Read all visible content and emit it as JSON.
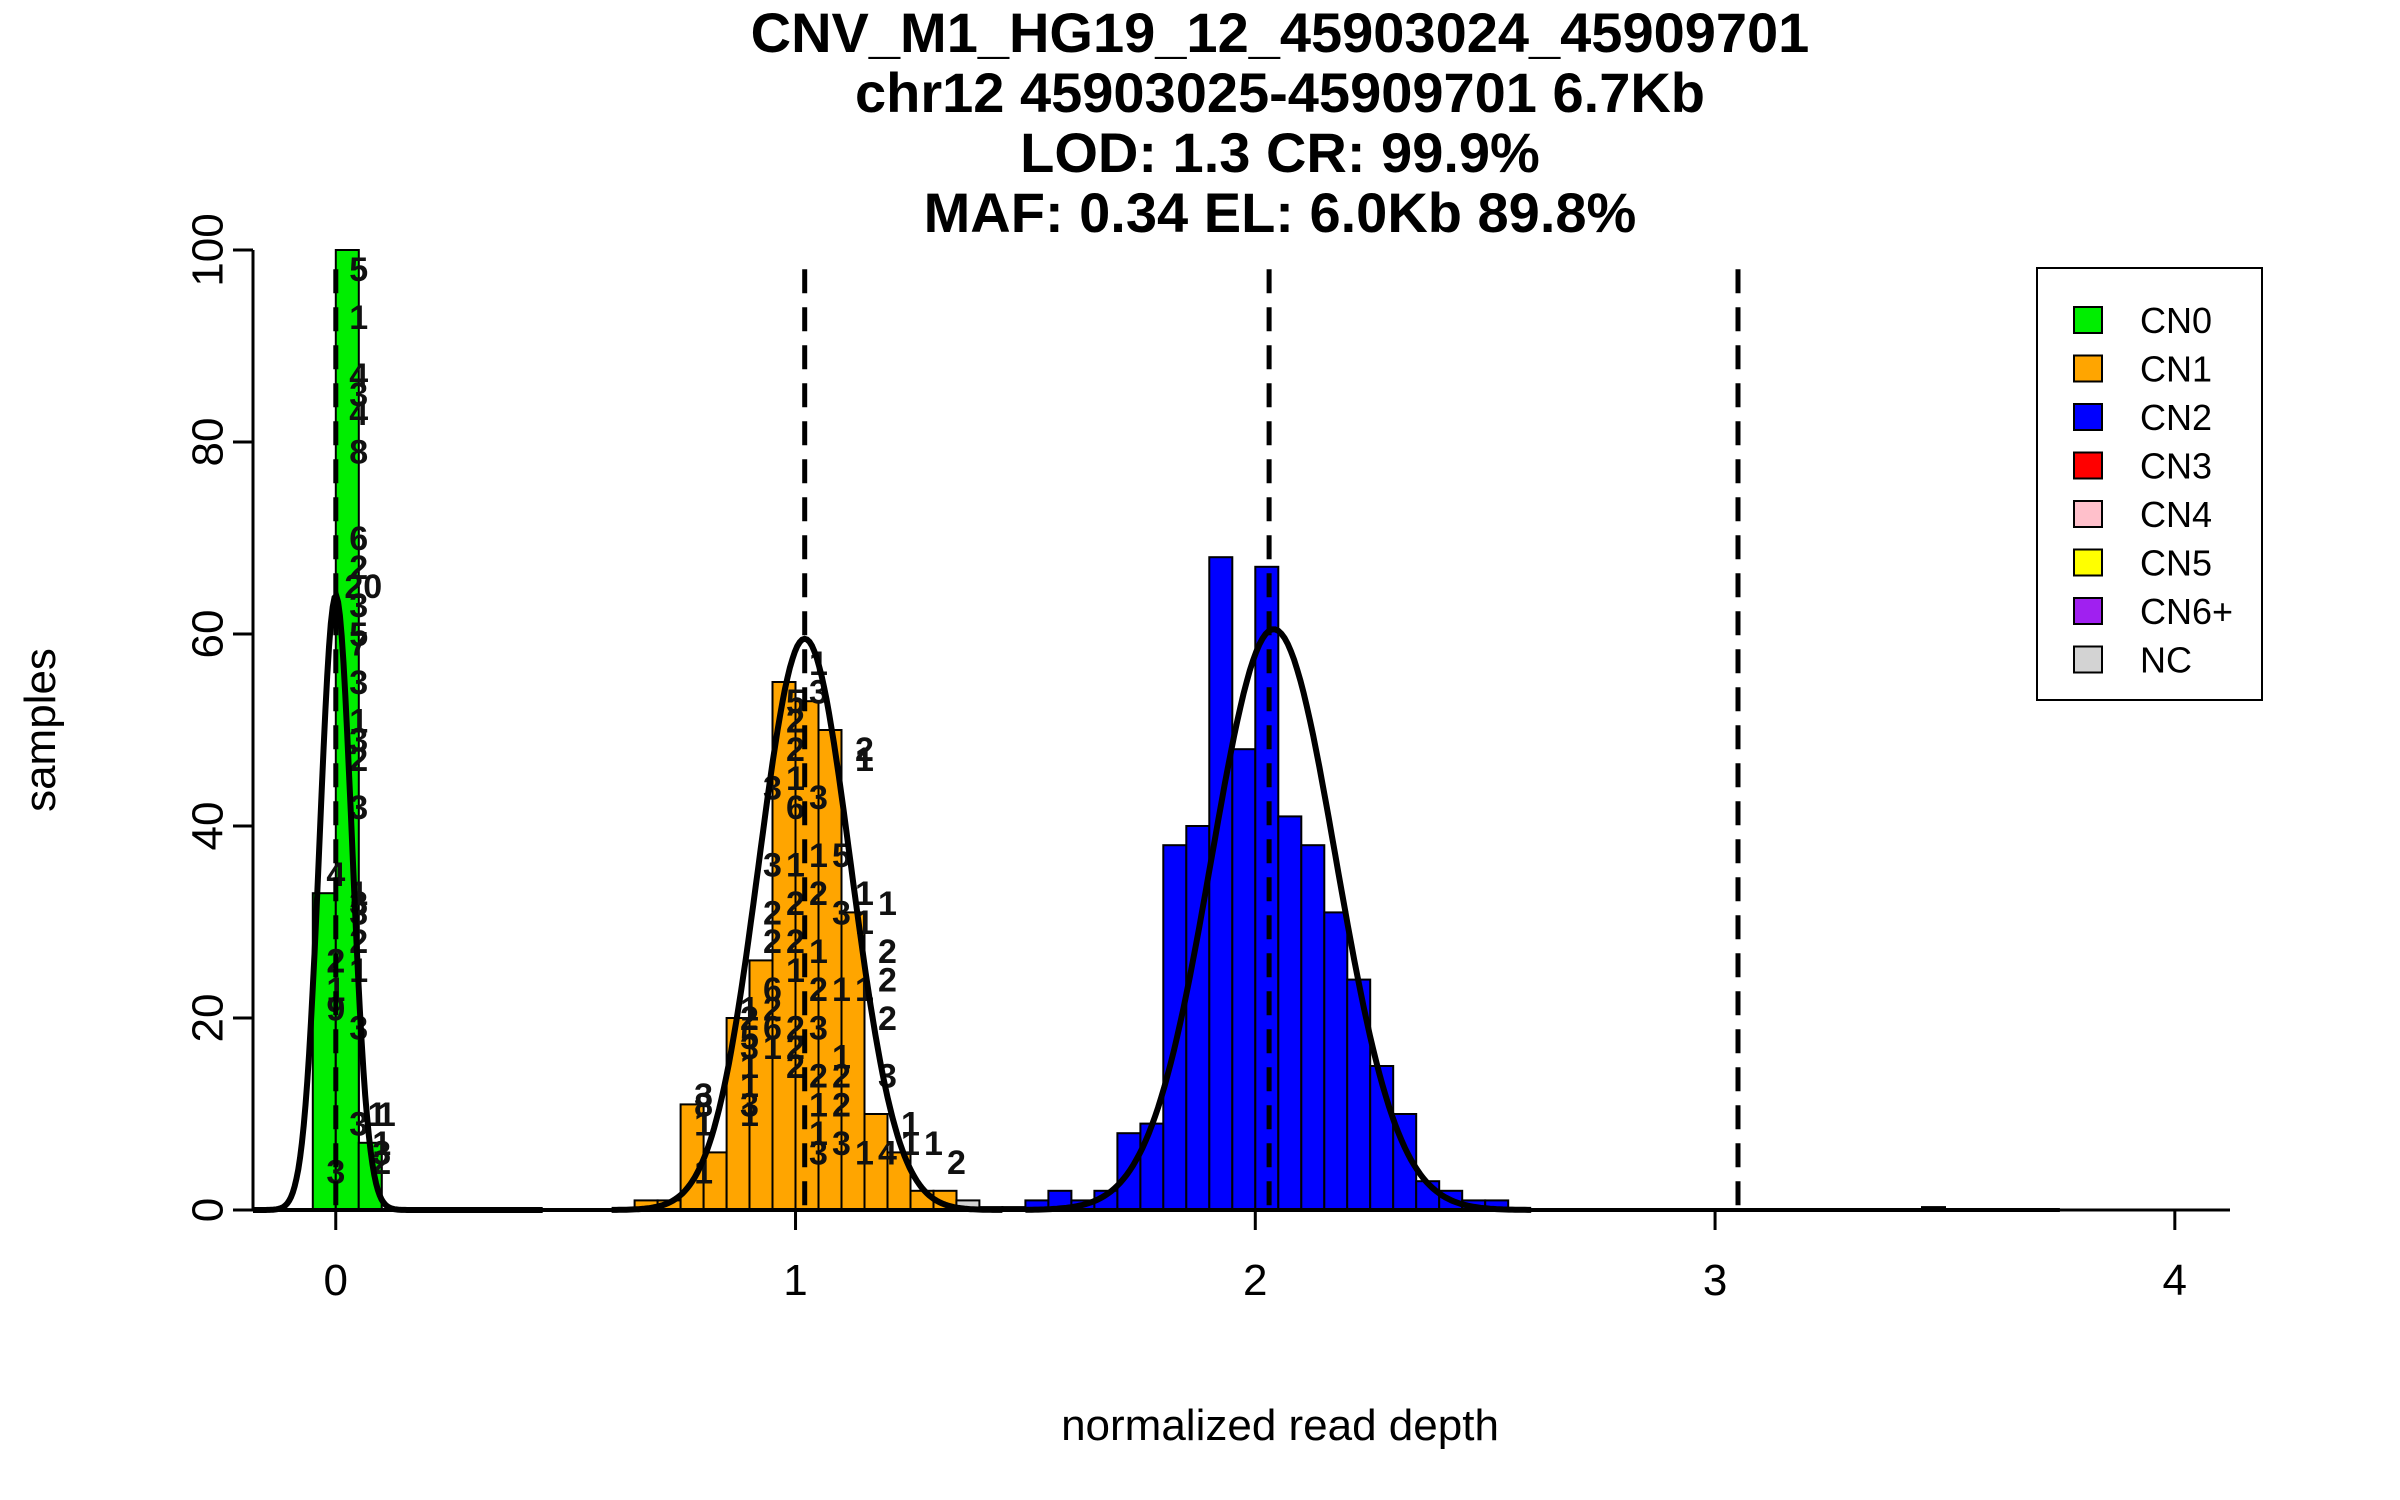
{
  "chart_data": {
    "type": "bar",
    "title_lines": [
      "CNV_M1_HG19_12_45903024_45909701",
      "chr12 45903025-45909701 6.7Kb",
      "LOD: 1.3 CR: 99.9%",
      "MAF: 0.34 EL: 6.0Kb 89.8%"
    ],
    "xlabel": "normalized read depth",
    "ylabel": "samples",
    "xlim": [
      -0.18,
      4.12
    ],
    "ylim": [
      0,
      100
    ],
    "x_ticks": [
      0,
      1,
      2,
      3,
      4
    ],
    "y_ticks": [
      0,
      20,
      40,
      60,
      80,
      100
    ],
    "vlines": [
      0.0,
      1.02,
      2.03,
      3.05
    ],
    "legend_position": "top-right",
    "legend": [
      {
        "label": "CN0",
        "color": "#00ee00"
      },
      {
        "label": "CN1",
        "color": "#ffa500"
      },
      {
        "label": "CN2",
        "color": "#0000ff"
      },
      {
        "label": "CN3",
        "color": "#ff0000"
      },
      {
        "label": "CN4",
        "color": "#ffc0cb"
      },
      {
        "label": "CN5",
        "color": "#ffff00"
      },
      {
        "label": "CN6+",
        "color": "#a020f0"
      },
      {
        "label": "NC",
        "color": "#d3d3d3"
      }
    ],
    "bin_width": 0.05,
    "series": [
      {
        "color": "#00ee00",
        "bins": [
          [
            -0.025,
            33
          ],
          [
            0.025,
            24
          ],
          [
            0.075,
            6
          ]
        ]
      },
      {
        "color": "#00ee00",
        "bins": [
          [
            0.025,
            100
          ],
          [
            0.075,
            7
          ]
        ]
      },
      {
        "color": "#ffa500",
        "bins": [
          [
            0.675,
            1
          ],
          [
            0.725,
            1
          ],
          [
            0.775,
            11
          ],
          [
            0.825,
            6
          ],
          [
            0.875,
            20
          ],
          [
            0.925,
            26
          ],
          [
            0.975,
            55
          ],
          [
            1.025,
            53
          ],
          [
            1.075,
            50
          ],
          [
            1.125,
            31
          ],
          [
            1.175,
            10
          ],
          [
            1.225,
            6
          ],
          [
            1.275,
            2
          ],
          [
            1.325,
            2
          ]
        ]
      },
      {
        "color": "#d3d3d3",
        "bins": [
          [
            1.375,
            1
          ],
          [
            1.425,
            0.3
          ],
          [
            3.475,
            0.3
          ]
        ]
      },
      {
        "color": "#0000ff",
        "bins": [
          [
            1.475,
            0.3
          ],
          [
            1.525,
            1
          ],
          [
            1.575,
            2
          ],
          [
            1.625,
            1
          ],
          [
            1.675,
            2
          ],
          [
            1.725,
            8
          ],
          [
            1.775,
            9
          ],
          [
            1.825,
            38
          ],
          [
            1.875,
            40
          ],
          [
            1.925,
            68
          ],
          [
            1.975,
            48
          ],
          [
            2.025,
            67
          ],
          [
            2.075,
            41
          ],
          [
            2.125,
            38
          ],
          [
            2.175,
            31
          ],
          [
            2.225,
            24
          ],
          [
            2.275,
            15
          ],
          [
            2.325,
            10
          ],
          [
            2.375,
            3
          ],
          [
            2.425,
            2
          ],
          [
            2.475,
            1
          ],
          [
            2.525,
            1
          ]
        ]
      }
    ],
    "density_curves": [
      {
        "mean": 0.0,
        "sd": 0.035,
        "peak": 64,
        "from": -0.18,
        "to": 0.45
      },
      {
        "mean": 1.02,
        "sd": 0.1,
        "peak": 59.5,
        "from": 0.6,
        "to": 1.45
      },
      {
        "mean": 2.04,
        "sd": 0.135,
        "peak": 60.5,
        "from": 1.5,
        "to": 2.6
      }
    ],
    "bar_labels": [
      {
        "x": 0.05,
        "y": 98,
        "text": "5"
      },
      {
        "x": 0.05,
        "y": 93,
        "text": "1"
      },
      {
        "x": 0.05,
        "y": 87,
        "text": "4"
      },
      {
        "x": 0.05,
        "y": 85,
        "text": "3"
      },
      {
        "x": 0.05,
        "y": 83,
        "text": "4"
      },
      {
        "x": 0.05,
        "y": 79,
        "text": "8"
      },
      {
        "x": 0.05,
        "y": 70,
        "text": "6"
      },
      {
        "x": 0.05,
        "y": 67,
        "text": "2"
      },
      {
        "x": 0.06,
        "y": 65,
        "text": "20"
      },
      {
        "x": 0.05,
        "y": 63,
        "text": "3"
      },
      {
        "x": 0.05,
        "y": 60,
        "text": "5"
      },
      {
        "x": 0.05,
        "y": 59,
        "text": "7"
      },
      {
        "x": 0.05,
        "y": 55,
        "text": "3"
      },
      {
        "x": 0.05,
        "y": 51,
        "text": "1"
      },
      {
        "x": 0.05,
        "y": 49,
        "text": "3"
      },
      {
        "x": 0.05,
        "y": 47,
        "text": "2"
      },
      {
        "x": 0.05,
        "y": 42,
        "text": "3"
      },
      {
        "x": 0.0,
        "y": 35,
        "text": "4"
      },
      {
        "x": 0.05,
        "y": 33,
        "text": "1"
      },
      {
        "x": 0.05,
        "y": 32,
        "text": "3"
      },
      {
        "x": 0.05,
        "y": 31,
        "text": "3"
      },
      {
        "x": 0.05,
        "y": 28,
        "text": "2"
      },
      {
        "x": 0.0,
        "y": 26,
        "text": "2"
      },
      {
        "x": 0.05,
        "y": 25,
        "text": "1"
      },
      {
        "x": 0.0,
        "y": 23,
        "text": "1"
      },
      {
        "x": 0.0,
        "y": 21,
        "text": "9"
      },
      {
        "x": 0.05,
        "y": 19,
        "text": "3"
      },
      {
        "x": 0.09,
        "y": 10,
        "text": "1"
      },
      {
        "x": 0.05,
        "y": 9,
        "text": "3"
      },
      {
        "x": 0.11,
        "y": 10,
        "text": "1"
      },
      {
        "x": 0.1,
        "y": 7,
        "text": "1"
      },
      {
        "x": 0.1,
        "y": 6,
        "text": "3"
      },
      {
        "x": 0.1,
        "y": 5,
        "text": "2"
      },
      {
        "x": 0.0,
        "y": 4,
        "text": "3"
      },
      {
        "x": 0.8,
        "y": 12,
        "text": "3"
      },
      {
        "x": 0.8,
        "y": 11,
        "text": "8"
      },
      {
        "x": 0.8,
        "y": 9,
        "text": "1"
      },
      {
        "x": 0.8,
        "y": 4,
        "text": "1"
      },
      {
        "x": 0.9,
        "y": 21,
        "text": "1"
      },
      {
        "x": 0.9,
        "y": 20,
        "text": "2"
      },
      {
        "x": 0.9,
        "y": 18,
        "text": "5"
      },
      {
        "x": 0.9,
        "y": 17,
        "text": "3"
      },
      {
        "x": 0.9,
        "y": 15,
        "text": "1"
      },
      {
        "x": 0.9,
        "y": 13,
        "text": "1"
      },
      {
        "x": 0.9,
        "y": 11,
        "text": "3"
      },
      {
        "x": 0.9,
        "y": 10,
        "text": "1"
      },
      {
        "x": 0.95,
        "y": 44,
        "text": "3"
      },
      {
        "x": 0.95,
        "y": 36,
        "text": "3"
      },
      {
        "x": 0.95,
        "y": 31,
        "text": "2"
      },
      {
        "x": 0.95,
        "y": 28,
        "text": "2"
      },
      {
        "x": 0.95,
        "y": 23,
        "text": "6"
      },
      {
        "x": 0.95,
        "y": 21,
        "text": "2"
      },
      {
        "x": 0.95,
        "y": 19,
        "text": "6"
      },
      {
        "x": 0.95,
        "y": 17,
        "text": "1"
      },
      {
        "x": 1.0,
        "y": 53,
        "text": "5"
      },
      {
        "x": 1.0,
        "y": 51,
        "text": "2"
      },
      {
        "x": 1.0,
        "y": 48,
        "text": "2"
      },
      {
        "x": 1.0,
        "y": 45,
        "text": "1"
      },
      {
        "x": 1.0,
        "y": 42,
        "text": "6"
      },
      {
        "x": 1.0,
        "y": 36,
        "text": "1"
      },
      {
        "x": 1.0,
        "y": 32,
        "text": "2"
      },
      {
        "x": 1.0,
        "y": 28,
        "text": "2"
      },
      {
        "x": 1.0,
        "y": 25,
        "text": "1"
      },
      {
        "x": 1.0,
        "y": 19,
        "text": "2"
      },
      {
        "x": 1.0,
        "y": 17,
        "text": "2"
      },
      {
        "x": 1.0,
        "y": 15,
        "text": "2"
      },
      {
        "x": 1.05,
        "y": 57,
        "text": "1"
      },
      {
        "x": 1.05,
        "y": 54,
        "text": "3"
      },
      {
        "x": 1.05,
        "y": 43,
        "text": "3"
      },
      {
        "x": 1.05,
        "y": 37,
        "text": "1"
      },
      {
        "x": 1.05,
        "y": 33,
        "text": "2"
      },
      {
        "x": 1.05,
        "y": 27,
        "text": "1"
      },
      {
        "x": 1.05,
        "y": 23,
        "text": "2"
      },
      {
        "x": 1.05,
        "y": 19,
        "text": "3"
      },
      {
        "x": 1.05,
        "y": 14,
        "text": "2"
      },
      {
        "x": 1.05,
        "y": 11,
        "text": "1"
      },
      {
        "x": 1.05,
        "y": 8,
        "text": "1"
      },
      {
        "x": 1.05,
        "y": 6,
        "text": "3"
      },
      {
        "x": 1.1,
        "y": 37,
        "text": "5"
      },
      {
        "x": 1.1,
        "y": 31,
        "text": "3"
      },
      {
        "x": 1.1,
        "y": 23,
        "text": "1"
      },
      {
        "x": 1.1,
        "y": 16,
        "text": "1"
      },
      {
        "x": 1.1,
        "y": 14,
        "text": "2"
      },
      {
        "x": 1.1,
        "y": 11,
        "text": "2"
      },
      {
        "x": 1.1,
        "y": 7,
        "text": "3"
      },
      {
        "x": 1.15,
        "y": 48,
        "text": "2"
      },
      {
        "x": 1.15,
        "y": 47,
        "text": "1"
      },
      {
        "x": 1.15,
        "y": 33,
        "text": "1"
      },
      {
        "x": 1.15,
        "y": 30,
        "text": "1"
      },
      {
        "x": 1.15,
        "y": 23,
        "text": "1"
      },
      {
        "x": 1.15,
        "y": 6,
        "text": "1"
      },
      {
        "x": 1.2,
        "y": 32,
        "text": "1"
      },
      {
        "x": 1.2,
        "y": 27,
        "text": "2"
      },
      {
        "x": 1.2,
        "y": 24,
        "text": "2"
      },
      {
        "x": 1.2,
        "y": 20,
        "text": "2"
      },
      {
        "x": 1.2,
        "y": 14,
        "text": "3"
      },
      {
        "x": 1.2,
        "y": 6,
        "text": "4"
      },
      {
        "x": 1.25,
        "y": 9,
        "text": "1"
      },
      {
        "x": 1.25,
        "y": 7,
        "text": "1"
      },
      {
        "x": 1.3,
        "y": 7,
        "text": "1"
      },
      {
        "x": 1.35,
        "y": 5,
        "text": "2"
      }
    ]
  }
}
